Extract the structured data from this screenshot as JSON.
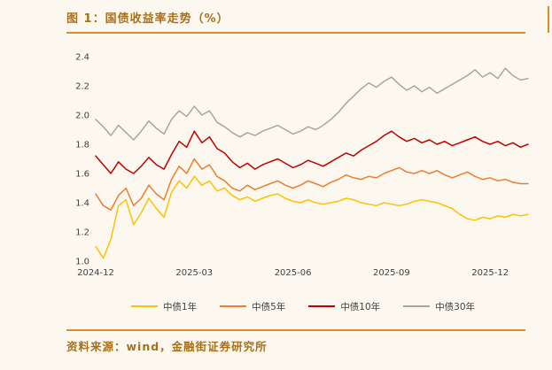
{
  "page": {
    "title": "图 1：国债收益率走势（%）",
    "source": "资料来源：wind，金融街证券研究所",
    "accent_color": "#a9701c",
    "divider_color": "#d98f2b",
    "background_color": "#fdf8ef"
  },
  "chart_data": {
    "type": "line",
    "title": "国债收益率走势（%）",
    "xlabel": "",
    "ylabel": "",
    "ylim": [
      1.0,
      2.4
    ],
    "y_ticks": [
      1.0,
      1.2,
      1.4,
      1.6,
      1.8,
      2.0,
      2.2,
      2.4
    ],
    "x_tick_labels": [
      "2024-12",
      "2025-03",
      "2025-06",
      "2025-09",
      "2025-12"
    ],
    "x_tick_indices": [
      0,
      13,
      26,
      39,
      52
    ],
    "grid": false,
    "legend_position": "bottom",
    "series": [
      {
        "name": "中债1年",
        "color": "#FFC000",
        "values": [
          1.1,
          1.02,
          1.15,
          1.38,
          1.42,
          1.25,
          1.33,
          1.43,
          1.36,
          1.3,
          1.47,
          1.55,
          1.5,
          1.58,
          1.52,
          1.55,
          1.48,
          1.5,
          1.45,
          1.42,
          1.44,
          1.41,
          1.43,
          1.45,
          1.46,
          1.43,
          1.41,
          1.4,
          1.42,
          1.4,
          1.39,
          1.4,
          1.41,
          1.43,
          1.42,
          1.4,
          1.39,
          1.38,
          1.4,
          1.39,
          1.38,
          1.39,
          1.41,
          1.42,
          1.41,
          1.4,
          1.38,
          1.36,
          1.32,
          1.29,
          1.28,
          1.3,
          1.29,
          1.31,
          1.3,
          1.32,
          1.31,
          1.32
        ]
      },
      {
        "name": "中债5年",
        "color": "#ED7D31",
        "values": [
          1.46,
          1.38,
          1.35,
          1.45,
          1.5,
          1.38,
          1.43,
          1.52,
          1.46,
          1.42,
          1.56,
          1.65,
          1.6,
          1.7,
          1.63,
          1.66,
          1.58,
          1.55,
          1.5,
          1.48,
          1.52,
          1.49,
          1.51,
          1.53,
          1.55,
          1.52,
          1.5,
          1.52,
          1.55,
          1.53,
          1.51,
          1.54,
          1.56,
          1.59,
          1.57,
          1.56,
          1.58,
          1.57,
          1.6,
          1.62,
          1.64,
          1.61,
          1.6,
          1.62,
          1.6,
          1.62,
          1.59,
          1.57,
          1.59,
          1.61,
          1.58,
          1.56,
          1.57,
          1.55,
          1.56,
          1.54,
          1.53,
          1.53
        ]
      },
      {
        "name": "中债10年",
        "color": "#C00000",
        "values": [
          1.72,
          1.66,
          1.6,
          1.68,
          1.63,
          1.6,
          1.65,
          1.71,
          1.66,
          1.63,
          1.73,
          1.82,
          1.78,
          1.89,
          1.81,
          1.85,
          1.77,
          1.74,
          1.68,
          1.64,
          1.67,
          1.63,
          1.66,
          1.68,
          1.7,
          1.67,
          1.64,
          1.66,
          1.69,
          1.67,
          1.65,
          1.68,
          1.71,
          1.74,
          1.72,
          1.76,
          1.79,
          1.82,
          1.86,
          1.89,
          1.85,
          1.82,
          1.84,
          1.81,
          1.83,
          1.8,
          1.82,
          1.79,
          1.81,
          1.83,
          1.85,
          1.82,
          1.8,
          1.82,
          1.79,
          1.81,
          1.78,
          1.8
        ]
      },
      {
        "name": "中债30年",
        "color": "#A6A6A6",
        "values": [
          1.97,
          1.92,
          1.86,
          1.93,
          1.88,
          1.83,
          1.89,
          1.96,
          1.91,
          1.87,
          1.97,
          2.03,
          1.99,
          2.06,
          2.0,
          2.03,
          1.95,
          1.92,
          1.88,
          1.85,
          1.88,
          1.86,
          1.89,
          1.91,
          1.93,
          1.9,
          1.87,
          1.89,
          1.92,
          1.9,
          1.93,
          1.97,
          2.02,
          2.08,
          2.13,
          2.18,
          2.22,
          2.19,
          2.23,
          2.26,
          2.21,
          2.17,
          2.2,
          2.16,
          2.19,
          2.15,
          2.18,
          2.21,
          2.24,
          2.27,
          2.31,
          2.26,
          2.29,
          2.25,
          2.32,
          2.27,
          2.24,
          2.25
        ]
      }
    ]
  }
}
